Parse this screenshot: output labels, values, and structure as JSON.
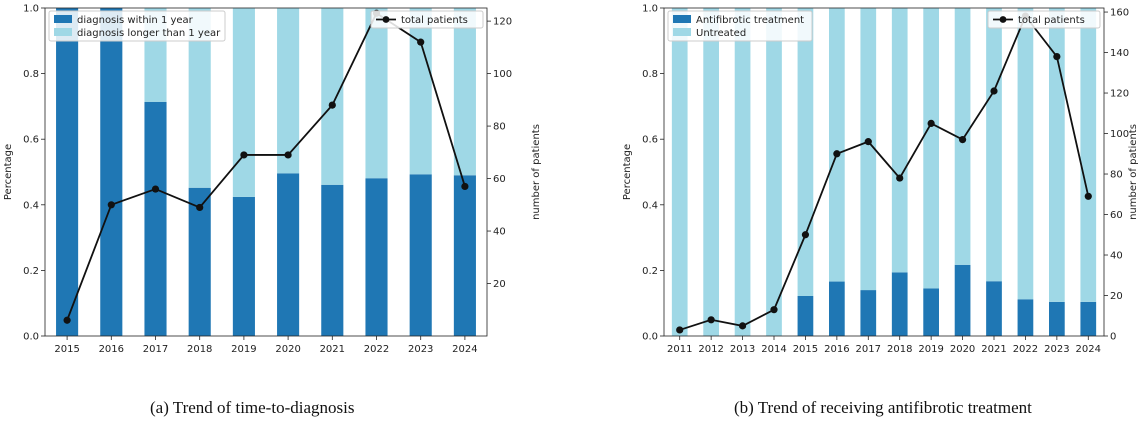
{
  "figures": [
    {
      "caption": "(a) Trend of time-to-diagnosis",
      "chart_data": {
        "type": "bar",
        "stacked": true,
        "categories": [
          "2015",
          "2016",
          "2017",
          "2018",
          "2019",
          "2020",
          "2021",
          "2022",
          "2023",
          "2024"
        ],
        "series": [
          {
            "name": "diagnosis within 1 year",
            "color": "#1f77b4",
            "values": [
              1.0,
              1.0,
              0.714,
              0.452,
              0.424,
              0.496,
              0.461,
              0.481,
              0.493,
              0.49
            ]
          },
          {
            "name": "diagnosis longer than 1 year",
            "color": "#9fd8e6",
            "values": [
              0.0,
              0.0,
              0.286,
              0.548,
              0.576,
              0.504,
              0.539,
              0.519,
              0.507,
              0.51
            ]
          }
        ],
        "line": {
          "name": "total patients",
          "color": "#111111",
          "values": [
            6,
            50,
            56,
            49,
            69,
            69,
            88,
            123,
            112,
            57
          ]
        },
        "ylabel": "Percentage",
        "ylim": [
          0,
          1.0
        ],
        "yticks": [
          "0.0",
          "0.2",
          "0.4",
          "0.6",
          "0.8",
          "1.0"
        ],
        "y2label": "number of patients",
        "y2lim": [
          0,
          125
        ],
        "y2ticks": [
          "20",
          "40",
          "60",
          "80",
          "100",
          "120"
        ],
        "legend_placement": "top-left",
        "line_legend_placement": "top-right",
        "grid": false
      }
    },
    {
      "caption": "(b) Trend of receiving antifibrotic treatment",
      "chart_data": {
        "type": "bar",
        "stacked": true,
        "categories": [
          "2011",
          "2012",
          "2013",
          "2014",
          "2015",
          "2016",
          "2017",
          "2018",
          "2019",
          "2020",
          "2021",
          "2022",
          "2023",
          "2024"
        ],
        "series": [
          {
            "name": "Antifibrotic treatment",
            "color": "#1f77b4",
            "values": [
              0.0,
              0.0,
              0.0,
              0.0,
              0.122,
              0.166,
              0.14,
              0.194,
              0.145,
              0.217,
              0.167,
              0.112,
              0.104,
              0.104
            ]
          },
          {
            "name": "Untreated",
            "color": "#9fd8e6",
            "values": [
              1.0,
              1.0,
              1.0,
              1.0,
              0.878,
              0.834,
              0.86,
              0.806,
              0.855,
              0.783,
              0.833,
              0.888,
              0.896,
              0.896
            ]
          }
        ],
        "line": {
          "name": "total patients",
          "color": "#111111",
          "values": [
            3,
            8,
            5,
            13,
            50,
            90,
            96,
            78,
            105,
            97,
            121,
            158,
            138,
            69
          ]
        },
        "ylabel": "Percentage",
        "ylim": [
          0,
          1.0
        ],
        "yticks": [
          "0.0",
          "0.2",
          "0.4",
          "0.6",
          "0.8",
          "1.0"
        ],
        "y2label": "number of patients",
        "y2lim": [
          0,
          162
        ],
        "y2ticks": [
          "0",
          "20",
          "40",
          "60",
          "80",
          "100",
          "120",
          "140",
          "160"
        ],
        "legend_placement": "top-left",
        "line_legend_placement": "top-right",
        "grid": false
      }
    }
  ]
}
